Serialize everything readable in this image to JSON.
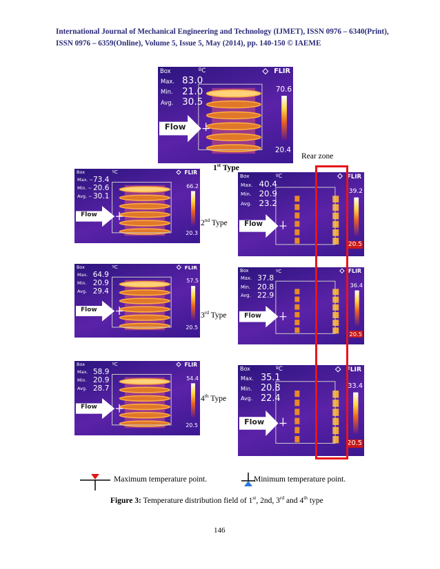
{
  "header": {
    "line1": "International Journal of Mechanical Engineering and Technology (IJMET), ISSN 0976 – 6340(Print),",
    "line2": "ISSN 0976 – 6359(Online), Volume 5, Issue 5, May (2014), pp. 140-150 © IAEME"
  },
  "panels": [
    {
      "box": "Box",
      "unit": "ºC",
      "brand": "FLIR",
      "max_label": "Max.",
      "max": "83.0",
      "min_label": "Min.",
      "min": "21.0",
      "avg_label": "Avg.",
      "avg": "30.5",
      "scale_max": "70.6",
      "scale_min": "20.4",
      "flow": "Flow"
    },
    {
      "box": "Box",
      "unit": "ºC",
      "brand": "FLIR",
      "max_label": "Max. ~",
      "max": "73.4",
      "min_label": "Min. ~",
      "min": "20.6",
      "avg_label": "Avg. ~",
      "avg": "30.1",
      "scale_max": "66.2",
      "scale_min": "20.3",
      "flow": "Flow"
    },
    {
      "box": "Box",
      "unit": "ºC",
      "brand": "FLIR",
      "max_label": "Max.",
      "max": "40.4",
      "min_label": "Min.",
      "min": "20.9",
      "avg_label": "Avg.",
      "avg": "23.2",
      "scale_max": "39.2",
      "scale_min": "20.5",
      "flow": "Flow"
    },
    {
      "box": "Box",
      "unit": "ºC",
      "brand": "FLIR",
      "max_label": "Max.",
      "max": "64.9",
      "min_label": "Min.",
      "min": "20.9",
      "avg_label": "Avg.",
      "avg": "29.4",
      "scale_max": "57.5",
      "scale_min": "20.5",
      "flow": "Flow"
    },
    {
      "box": "Box",
      "unit": "ºC",
      "brand": "FLIR",
      "max_label": "Max.",
      "max": "37.8",
      "min_label": "Min.",
      "min": "20.8",
      "avg_label": "Avg.",
      "avg": "22.9",
      "scale_max": "36.4",
      "scale_min": "20.5",
      "flow": "Flow"
    },
    {
      "box": "Box",
      "unit": "ºC",
      "brand": "FLIR",
      "max_label": "Max.",
      "max": "58.9",
      "min_label": "Min.",
      "min": "20.9",
      "avg_label": "Avg.",
      "avg": "28.7",
      "scale_max": "54.4",
      "scale_min": "20.5",
      "flow": "Flow"
    },
    {
      "box": "Box",
      "unit": "ºC",
      "brand": "FLIR",
      "max_label": "Max.",
      "max": "35.1",
      "min_label": "Min.",
      "min": "20.8",
      "avg_label": "Avg.",
      "avg": "22.4",
      "scale_max": "33.4",
      "scale_min": "20.5",
      "flow": "Flow"
    }
  ],
  "type_labels": [
    {
      "num": "1",
      "sup": "st",
      "word": " Type"
    },
    {
      "num": "2",
      "sup": "nd",
      "word": " Type"
    },
    {
      "num": "3",
      "sup": "rd",
      "word": " Type"
    },
    {
      "num": "4",
      "sup": "th",
      "word": " Type"
    }
  ],
  "rear_zone": "Rear zone",
  "legend": {
    "max": "Maximum temperature point.",
    "min": "Minimum temperature point."
  },
  "caption": {
    "label": "Figure 3:",
    "parts": [
      " Temperature distribution field of 1",
      "st",
      ", 2nd, 3",
      "rd",
      " and 4",
      "th",
      " type"
    ]
  },
  "page_number": "146"
}
